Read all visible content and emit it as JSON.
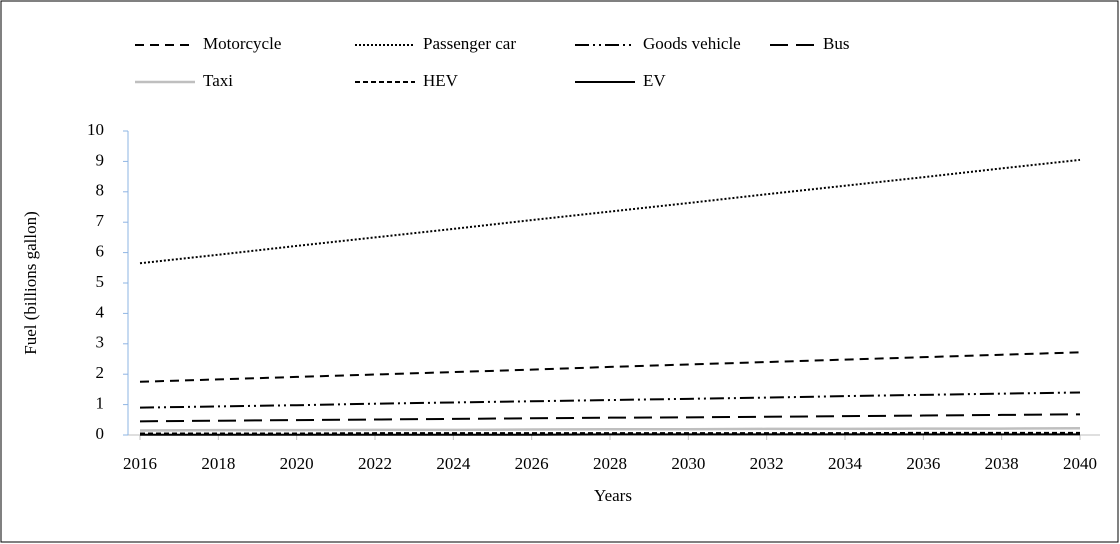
{
  "chart_data": {
    "type": "line",
    "x_label": "Years",
    "y_label": "Fuel (billions gallon)",
    "x": [
      2016,
      2018,
      2020,
      2022,
      2024,
      2026,
      2028,
      2030,
      2032,
      2034,
      2036,
      2038,
      2040
    ],
    "xlim": [
      2016,
      2040
    ],
    "xticks": [
      2016,
      2018,
      2020,
      2022,
      2024,
      2026,
      2028,
      2030,
      2032,
      2034,
      2036,
      2038,
      2040
    ],
    "ylim": [
      0,
      10
    ],
    "yticks": [
      0,
      1,
      2,
      3,
      4,
      5,
      6,
      7,
      8,
      9,
      10
    ],
    "legend": "top",
    "series": [
      {
        "name": "Motorcycle",
        "color": "#000000",
        "dash": "dashed",
        "values": [
          1.75,
          1.83,
          1.91,
          1.99,
          2.07,
          2.15,
          2.24,
          2.32,
          2.4,
          2.48,
          2.56,
          2.64,
          2.72
        ]
      },
      {
        "name": "Passenger car",
        "color": "#000000",
        "dash": "dotted",
        "values": [
          5.65,
          5.93,
          6.22,
          6.5,
          6.78,
          7.07,
          7.35,
          7.63,
          7.92,
          8.2,
          8.48,
          8.77,
          9.05
        ]
      },
      {
        "name": "Goods vehicle",
        "color": "#000000",
        "dash": "dash-dot-dot",
        "values": [
          0.9,
          0.94,
          0.98,
          1.03,
          1.07,
          1.11,
          1.15,
          1.19,
          1.23,
          1.28,
          1.32,
          1.36,
          1.4
        ]
      },
      {
        "name": "Bus",
        "color": "#000000",
        "dash": "long-dash",
        "values": [
          0.45,
          0.47,
          0.49,
          0.51,
          0.53,
          0.55,
          0.57,
          0.58,
          0.6,
          0.62,
          0.64,
          0.66,
          0.68
        ]
      },
      {
        "name": "Taxi",
        "color": "#bfbfbf",
        "dash": "solid",
        "values": [
          0.15,
          0.16,
          0.16,
          0.17,
          0.17,
          0.18,
          0.19,
          0.19,
          0.2,
          0.2,
          0.21,
          0.21,
          0.22
        ]
      },
      {
        "name": "HEV",
        "color": "#000000",
        "dash": "short-dash",
        "values": [
          0.05,
          0.05,
          0.05,
          0.06,
          0.06,
          0.06,
          0.06,
          0.06,
          0.06,
          0.06,
          0.07,
          0.07,
          0.07
        ]
      },
      {
        "name": "EV",
        "color": "#000000",
        "dash": "solid",
        "values": [
          0.01,
          0.01,
          0.01,
          0.01,
          0.01,
          0.01,
          0.02,
          0.02,
          0.02,
          0.02,
          0.02,
          0.02,
          0.02
        ]
      }
    ]
  }
}
